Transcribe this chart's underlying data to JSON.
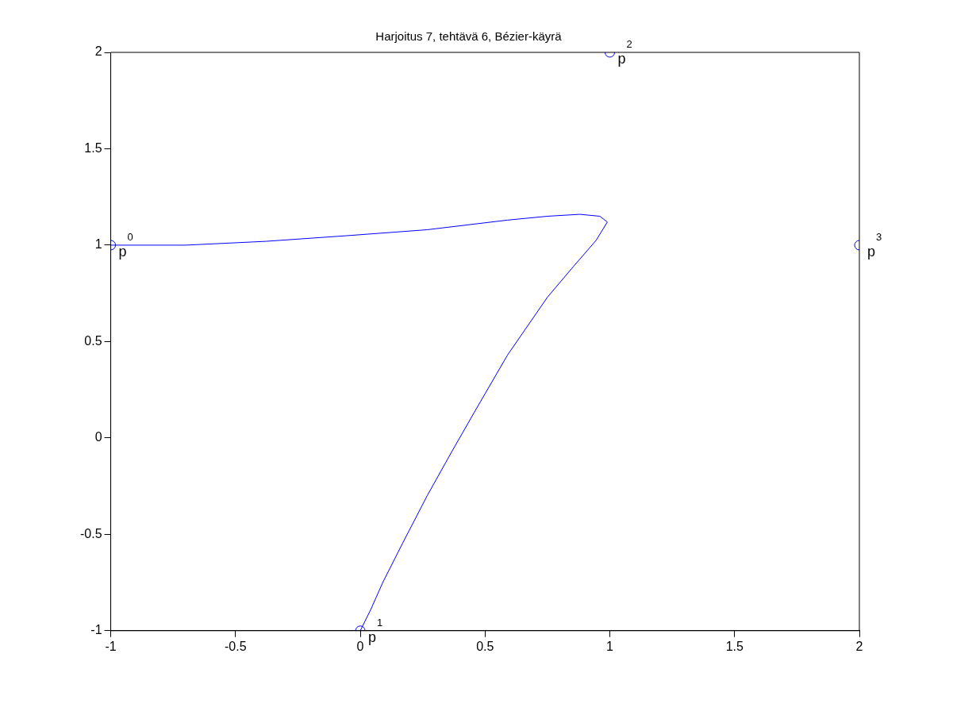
{
  "chart_data": {
    "type": "line",
    "title": "Harjoitus 7, tehtävä 6, Bézier-käyrä",
    "series": [
      {
        "color": "#0000ff",
        "marker": "none",
        "x": [
          -1,
          -0.7,
          -0.377,
          -0.055,
          0.268,
          0.59,
          0.75,
          0.88,
          0.96,
          0.99,
          0.945,
          0.848,
          0.75,
          0.59,
          0.46,
          0.365,
          0.268,
          0.17,
          0.09,
          0.042,
          0
        ],
        "values": [
          1,
          1.0,
          1.02,
          1.049,
          1.08,
          1.13,
          1.15,
          1.16,
          1.15,
          1.12,
          1.025,
          0.88,
          0.73,
          0.43,
          0.14,
          -0.075,
          -0.3,
          -0.545,
          -0.75,
          -0.89,
          -1
        ]
      },
      {
        "type": "scatter",
        "color": "#0000ff",
        "marker": "circle",
        "x": [
          -1,
          0,
          1,
          2
        ],
        "values": [
          1,
          -1,
          2,
          1
        ]
      }
    ],
    "xlim": [
      -1,
      2
    ],
    "xticks": [
      -1,
      -0.5,
      0,
      0.5,
      1,
      1.5,
      2
    ],
    "ylim": [
      -1,
      2
    ],
    "yticks": [
      -1,
      -0.5,
      0,
      0.5,
      1,
      1.5,
      2
    ],
    "grid": false,
    "legend": false,
    "annotations": [
      {
        "text": "p$^{0}$",
        "x": -1,
        "y": 1
      },
      {
        "text": "p$^{1}$",
        "x": 0,
        "y": -1
      },
      {
        "text": "p$^{2}$",
        "x": 1,
        "y": 2
      },
      {
        "text": "p$^{3}$",
        "x": 2,
        "y": 1
      }
    ]
  }
}
